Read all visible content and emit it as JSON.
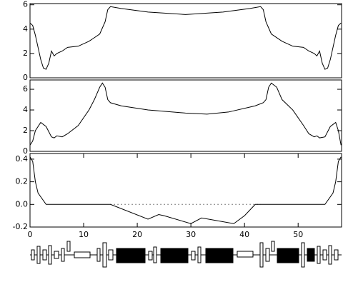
{
  "chart_data": [
    {
      "type": "line",
      "xlim": [
        0,
        58.1
      ],
      "ylim": [
        0,
        6.1
      ],
      "yticks": [
        0,
        2,
        4,
        6
      ],
      "series": [
        {
          "color": "#000000",
          "x": [
            0,
            0.5,
            1,
            2,
            2.5,
            3,
            3.5,
            4,
            4.5,
            5,
            6,
            7,
            9,
            11,
            13,
            14,
            14.5,
            15,
            17,
            22,
            29,
            36,
            41,
            43,
            43.5,
            44,
            45,
            47,
            49,
            51,
            52,
            53,
            53.5,
            54,
            54.5,
            55,
            55.5,
            56,
            57,
            57.5,
            58
          ],
          "values": [
            4.5,
            4.3,
            3.5,
            1.5,
            0.8,
            0.7,
            1.2,
            2.2,
            1.8,
            2.0,
            2.2,
            2.5,
            2.6,
            3.0,
            3.6,
            4.6,
            5.6,
            5.85,
            5.7,
            5.4,
            5.2,
            5.4,
            5.7,
            5.85,
            5.6,
            4.6,
            3.6,
            3.0,
            2.6,
            2.5,
            2.2,
            2.0,
            1.8,
            2.2,
            1.2,
            0.7,
            0.8,
            1.5,
            3.5,
            4.3,
            4.5
          ]
        }
      ]
    },
    {
      "type": "line",
      "xlim": [
        0,
        58.1
      ],
      "ylim": [
        0,
        6.9
      ],
      "yticks": [
        0,
        2,
        4,
        6
      ],
      "series": [
        {
          "color": "#000000",
          "x": [
            0,
            0.5,
            1,
            2,
            3,
            4,
            4.5,
            5,
            6,
            7,
            9,
            11,
            12,
            13,
            13.5,
            14,
            14.5,
            15,
            17,
            22,
            29,
            33,
            37,
            42,
            43.5,
            44,
            44.5,
            45,
            46,
            47,
            49,
            51,
            52,
            53,
            53.5,
            54,
            55,
            56,
            57,
            57.5,
            58
          ],
          "values": [
            0.6,
            1.0,
            2.0,
            2.8,
            2.4,
            1.4,
            1.3,
            1.5,
            1.4,
            1.7,
            2.5,
            4.0,
            5.0,
            6.2,
            6.6,
            6.2,
            5.0,
            4.7,
            4.4,
            4.0,
            3.7,
            3.6,
            3.8,
            4.4,
            4.7,
            5.0,
            6.2,
            6.6,
            6.2,
            5.0,
            4.0,
            2.5,
            1.7,
            1.4,
            1.5,
            1.3,
            1.4,
            2.4,
            2.8,
            2.0,
            0.6
          ]
        }
      ]
    },
    {
      "type": "line",
      "xlim": [
        0,
        58.1
      ],
      "ylim": [
        -0.2,
        0.45
      ],
      "yticks": [
        -0.2,
        {
          "value": 0,
          "label": "0.0"
        },
        0.2,
        0.4
      ],
      "xticks": [
        0,
        10,
        20,
        30,
        40,
        50
      ],
      "series": [
        {
          "color": "#000000",
          "x": [
            0,
            0.5,
            1,
            1.5,
            3,
            15,
            22,
            24,
            25,
            30,
            32,
            38,
            40,
            42,
            55,
            56.5,
            57,
            57.5,
            58
          ],
          "values": [
            0.42,
            0.38,
            0.2,
            0.1,
            0,
            0,
            -0.13,
            -0.09,
            -0.1,
            -0.17,
            -0.12,
            -0.17,
            -0.1,
            0,
            0,
            0.1,
            0.2,
            0.38,
            0.42
          ]
        },
        {
          "color": "#000000",
          "dash": true,
          "x": [
            15,
            43
          ],
          "values": [
            0,
            0
          ]
        }
      ]
    }
  ]
}
